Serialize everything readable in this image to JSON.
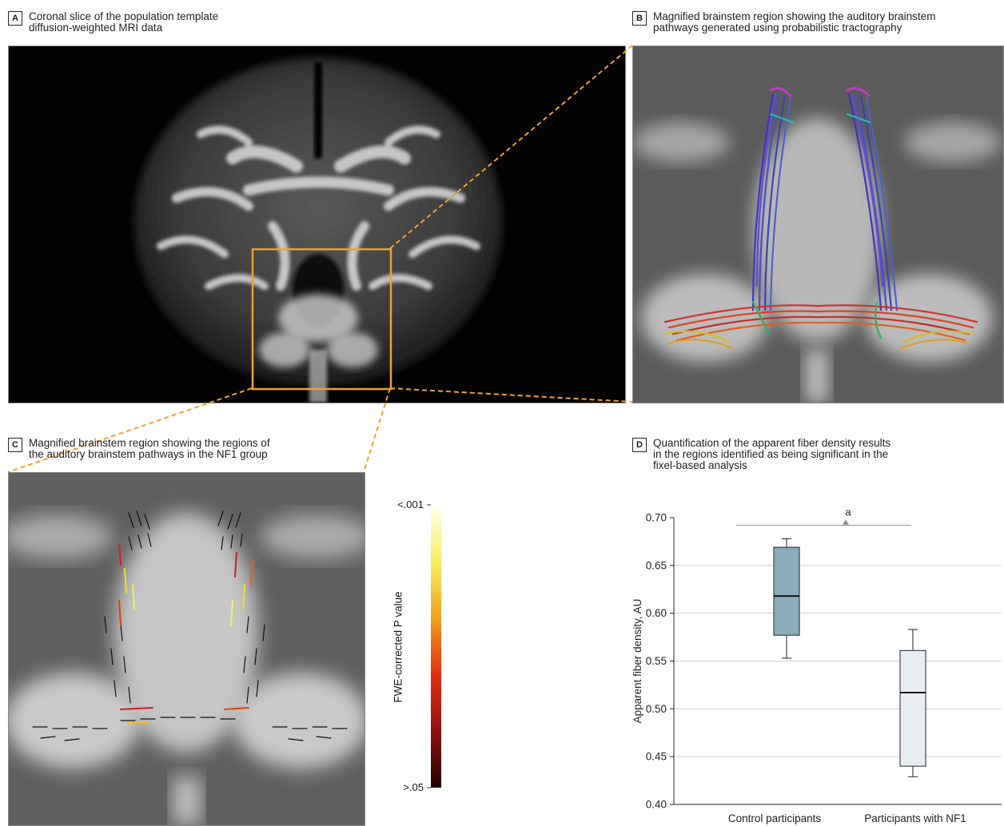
{
  "panels": {
    "a": {
      "letter": "A",
      "title_lines": [
        "Coronal slice of the population template",
        "diffusion-weighted MRI data"
      ]
    },
    "b": {
      "letter": "B",
      "title_lines": [
        "Magnified brainstem region showing the auditory brainstem",
        "pathways generated using probabilistic tractography"
      ]
    },
    "c": {
      "letter": "C",
      "title_lines": [
        "Magnified brainstem region showing the regions of",
        "the auditory brainstem pathways in the NF1 group"
      ]
    },
    "d": {
      "letter": "D",
      "title_lines": [
        "Quantification of the apparent fiber density results",
        "in the regions identified as being significant in the",
        "fixel-based analysis"
      ]
    }
  },
  "colorbar": {
    "label": "FWE-corrected P value",
    "top_tick": "<.001",
    "bottom_tick": ">.05"
  },
  "colors": {
    "accent_orange": "#f0a030",
    "control_box": "#8aadbb",
    "nf1_box": "#e6eef1",
    "grid": "#d0d0d0"
  },
  "chart_data": {
    "type": "box",
    "ylabel": "Apparent fiber density, AU",
    "ylim": [
      0.4,
      0.7
    ],
    "yticks": [
      "0.70",
      "0.65",
      "0.60",
      "0.55",
      "0.50",
      "0.45",
      "0.40"
    ],
    "grid": true,
    "categories": [
      "Control participants",
      "Participants with NF1"
    ],
    "series": [
      {
        "whisker_low": 0.553,
        "q1": 0.577,
        "median": 0.618,
        "q3": 0.669,
        "whisker_high": 0.678
      },
      {
        "whisker_low": 0.429,
        "q1": 0.44,
        "median": 0.517,
        "q3": 0.561,
        "whisker_high": 0.583
      }
    ],
    "annotation": {
      "label": "a"
    }
  }
}
